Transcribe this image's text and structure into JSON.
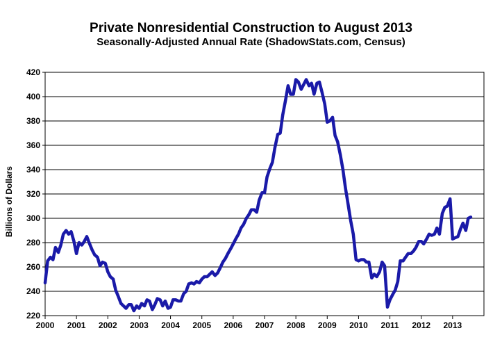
{
  "chart_data": {
    "type": "line",
    "title": "Private Nonresidential Construction to August 2013",
    "subtitle": "Seasonally-Adjusted Annual Rate (ShadowStats.com, Census)",
    "xlabel": "",
    "ylabel": "Billions of Dollars",
    "xlim": [
      2000,
      2014
    ],
    "ylim": [
      220,
      420
    ],
    "x_ticks": [
      "2000",
      "2001",
      "2002",
      "2003",
      "2004",
      "2005",
      "2006",
      "2007",
      "2008",
      "2009",
      "2010",
      "2011",
      "2012",
      "2013"
    ],
    "y_ticks": [
      220,
      240,
      260,
      280,
      300,
      320,
      340,
      360,
      380,
      400,
      420
    ],
    "grid": true,
    "line_color": "#1a1aa8",
    "x": [
      2000.0,
      2000.08,
      2000.17,
      2000.25,
      2000.33,
      2000.42,
      2000.5,
      2000.58,
      2000.67,
      2000.75,
      2000.83,
      2000.92,
      2001.0,
      2001.08,
      2001.17,
      2001.25,
      2001.33,
      2001.42,
      2001.5,
      2001.58,
      2001.67,
      2001.75,
      2001.83,
      2001.92,
      2002.0,
      2002.08,
      2002.17,
      2002.25,
      2002.33,
      2002.42,
      2002.5,
      2002.58,
      2002.67,
      2002.75,
      2002.83,
      2002.92,
      2003.0,
      2003.08,
      2003.17,
      2003.25,
      2003.33,
      2003.42,
      2003.5,
      2003.58,
      2003.67,
      2003.75,
      2003.83,
      2003.92,
      2004.0,
      2004.08,
      2004.17,
      2004.25,
      2004.33,
      2004.42,
      2004.5,
      2004.58,
      2004.67,
      2004.75,
      2004.83,
      2004.92,
      2005.0,
      2005.08,
      2005.17,
      2005.25,
      2005.33,
      2005.42,
      2005.5,
      2005.58,
      2005.67,
      2005.75,
      2005.83,
      2005.92,
      2006.0,
      2006.08,
      2006.17,
      2006.25,
      2006.33,
      2006.42,
      2006.5,
      2006.58,
      2006.67,
      2006.75,
      2006.83,
      2006.92,
      2007.0,
      2007.08,
      2007.17,
      2007.25,
      2007.33,
      2007.42,
      2007.5,
      2007.58,
      2007.67,
      2007.75,
      2007.83,
      2007.92,
      2008.0,
      2008.08,
      2008.17,
      2008.25,
      2008.33,
      2008.42,
      2008.5,
      2008.58,
      2008.67,
      2008.75,
      2008.83,
      2008.92,
      2009.0,
      2009.08,
      2009.17,
      2009.25,
      2009.33,
      2009.42,
      2009.5,
      2009.58,
      2009.67,
      2009.75,
      2009.83,
      2009.92,
      2010.0,
      2010.08,
      2010.17,
      2010.25,
      2010.33,
      2010.42,
      2010.5,
      2010.58,
      2010.67,
      2010.75,
      2010.83,
      2010.92,
      2011.0,
      2011.08,
      2011.17,
      2011.25,
      2011.33,
      2011.42,
      2011.5,
      2011.58,
      2011.67,
      2011.75,
      2011.83,
      2011.92,
      2012.0,
      2012.08,
      2012.17,
      2012.25,
      2012.33,
      2012.42,
      2012.5,
      2012.58,
      2012.67,
      2012.75,
      2012.83,
      2012.92,
      2013.0,
      2013.08,
      2013.17,
      2013.25,
      2013.33,
      2013.42,
      2013.5,
      2013.58
    ],
    "y": [
      247,
      265,
      268,
      266,
      276,
      272,
      278,
      287,
      290,
      287,
      289,
      281,
      271,
      280,
      278,
      281,
      285,
      279,
      274,
      270,
      268,
      261,
      264,
      263,
      256,
      252,
      250,
      241,
      236,
      230,
      228,
      226,
      229,
      229,
      224,
      228,
      226,
      230,
      228,
      233,
      232,
      225,
      229,
      234,
      233,
      228,
      232,
      226,
      227,
      233,
      233,
      232,
      232,
      238,
      240,
      246,
      247,
      246,
      248,
      247,
      250,
      252,
      252,
      254,
      256,
      253,
      255,
      259,
      264,
      267,
      271,
      275,
      279,
      283,
      287,
      292,
      295,
      300,
      303,
      307,
      307,
      305,
      315,
      321,
      321,
      334,
      341,
      346,
      358,
      369,
      370,
      385,
      397,
      409,
      402,
      402,
      414,
      412,
      406,
      410,
      414,
      409,
      411,
      402,
      411,
      412,
      404,
      394,
      379,
      380,
      383,
      368,
      363,
      352,
      340,
      325,
      311,
      298,
      287,
      266,
      265,
      266,
      266,
      264,
      264,
      251,
      254,
      252,
      256,
      264,
      261,
      227,
      233,
      237,
      241,
      248,
      265,
      265,
      268,
      271,
      271,
      273,
      276,
      281,
      281,
      279,
      283,
      287,
      286,
      287,
      292,
      287,
      304,
      309,
      310,
      316,
      283,
      284,
      285,
      291,
      296,
      290,
      300,
      301
    ]
  }
}
